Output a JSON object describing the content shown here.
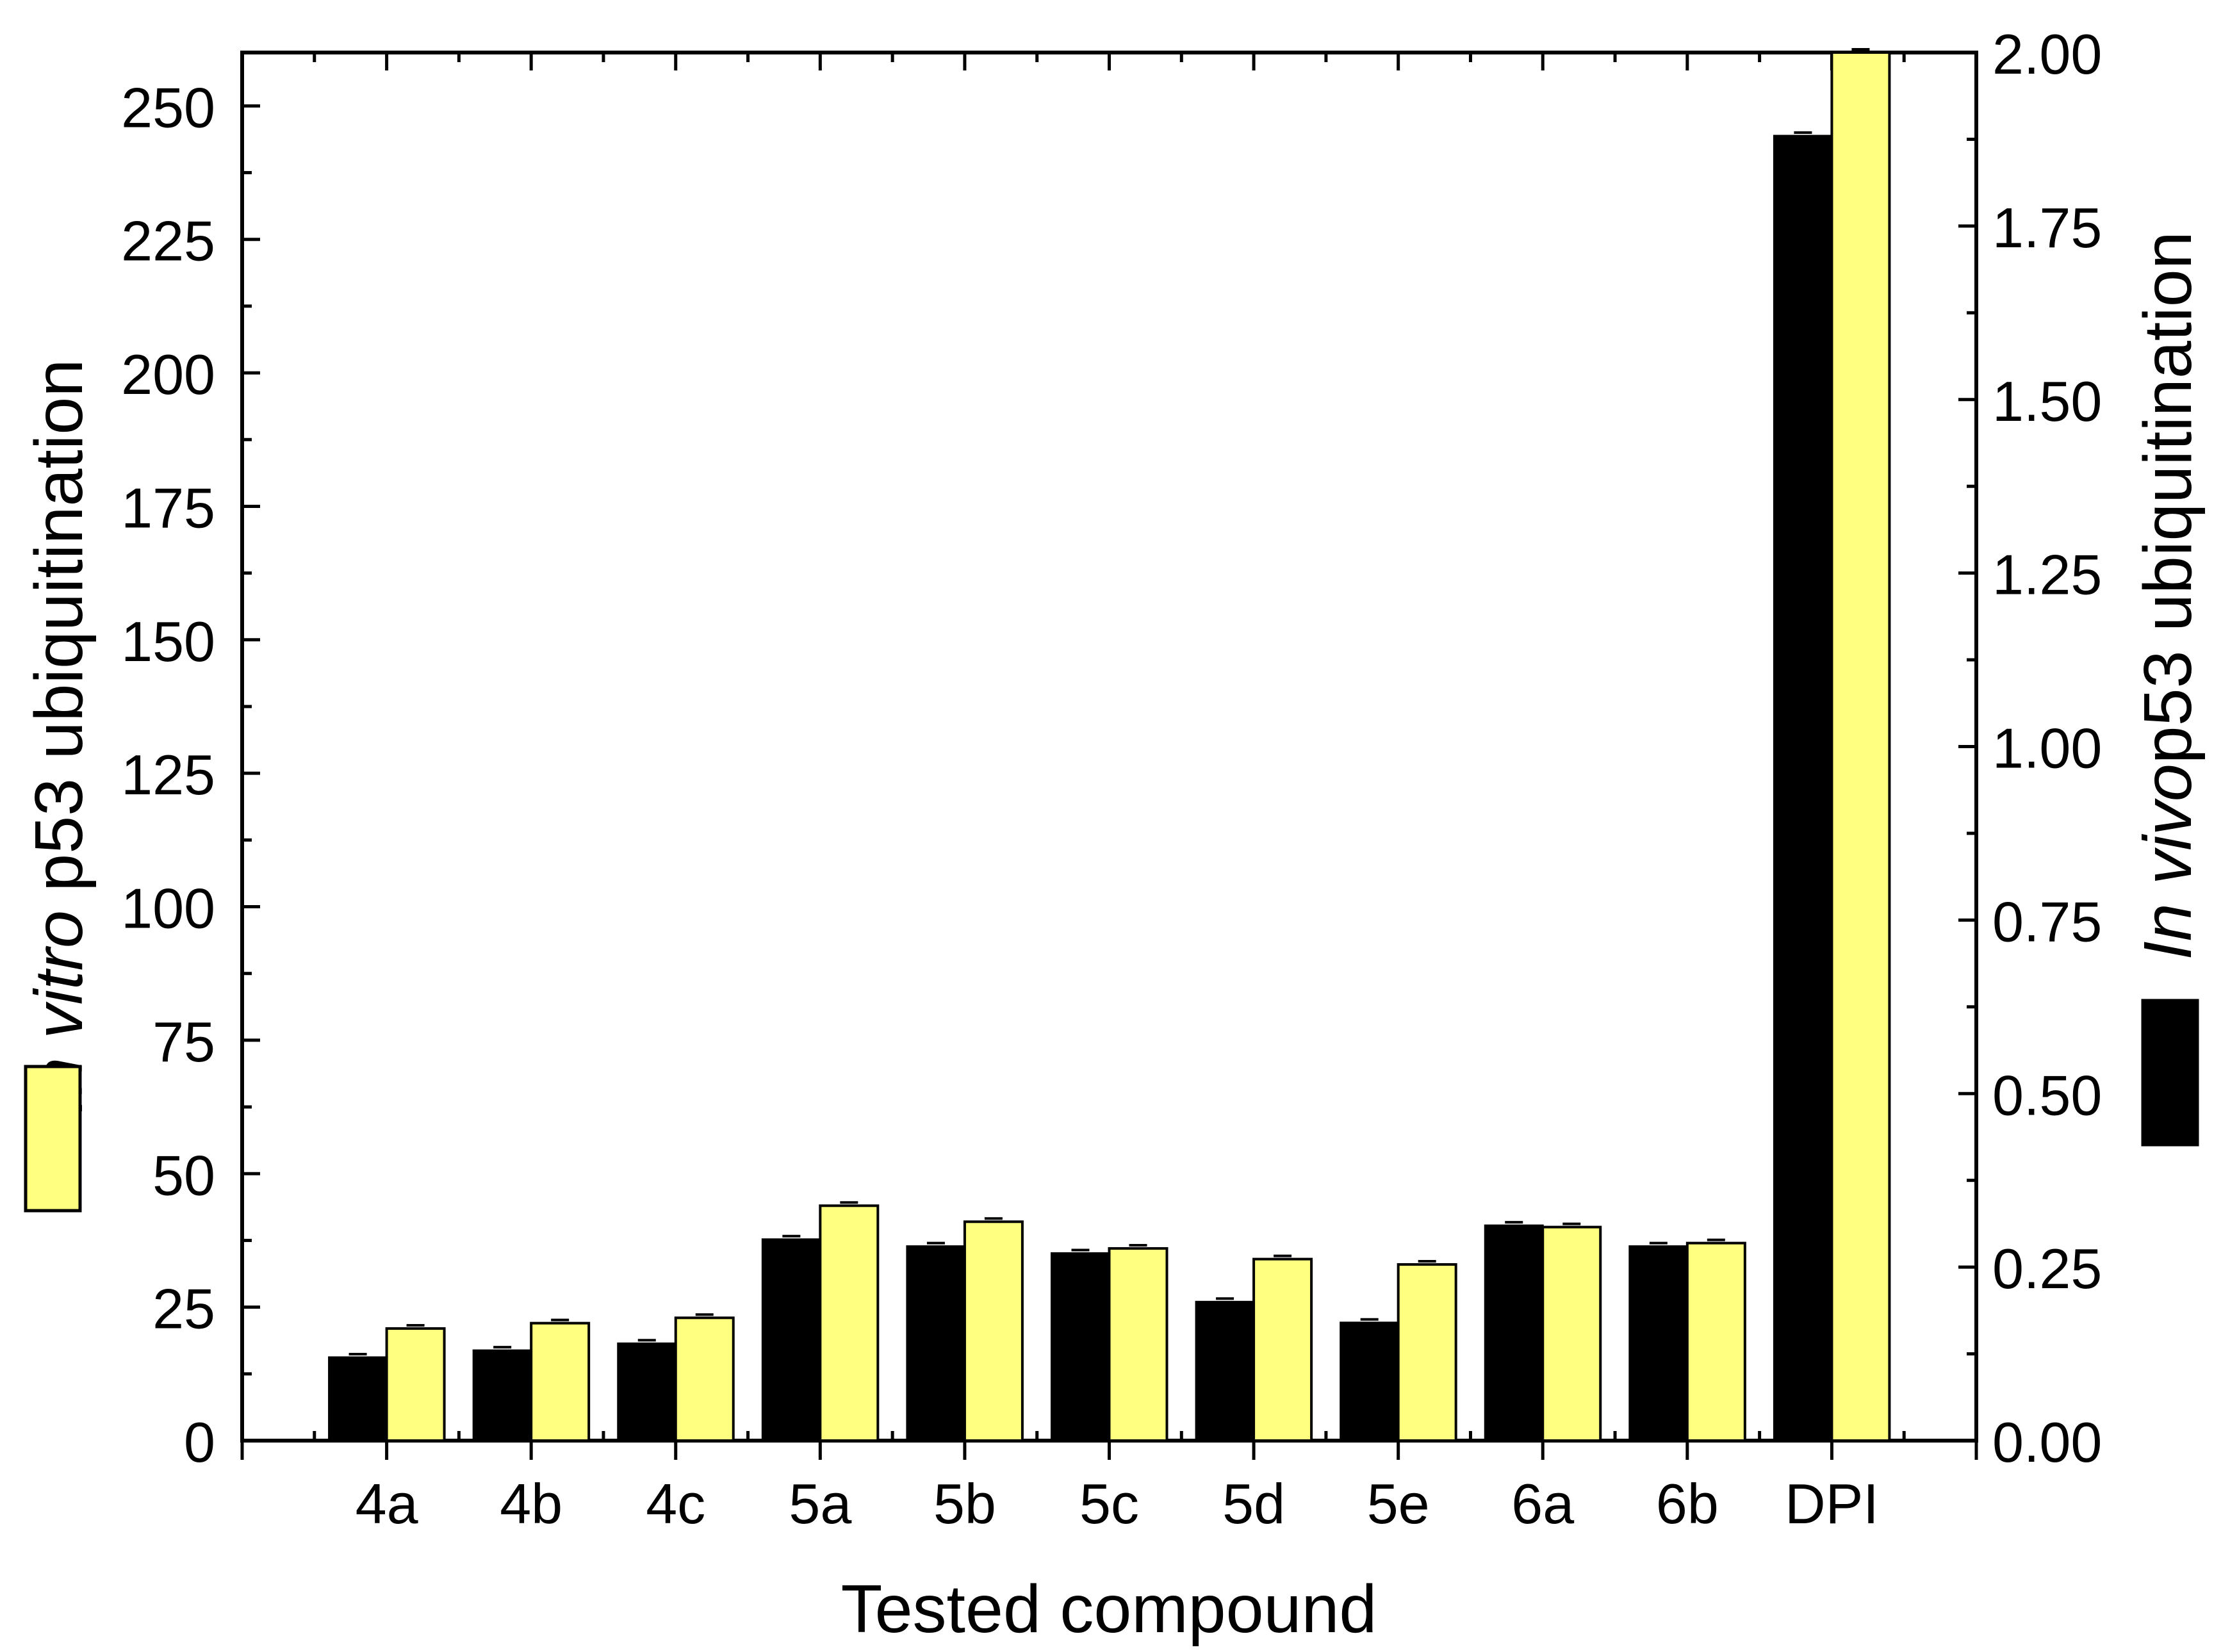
{
  "chart_data": {
    "type": "bar",
    "xlabel": "Tested compound",
    "ylabel_left": {
      "italic": "In vitro",
      "rest": " p53 ubiquitination"
    },
    "ylabel_right": {
      "italic": "In vivo",
      "rest": "p53 ubiquitination"
    },
    "categories": [
      "4a",
      "4b",
      "4c",
      "5a",
      "5b",
      "5c",
      "5d",
      "5e",
      "6a",
      "6b",
      "DPI"
    ],
    "series": [
      {
        "key": "in_vivo",
        "axis": "right",
        "color": "#000000",
        "values": [
          0.12,
          0.13,
          0.14,
          0.29,
          0.28,
          0.27,
          0.2,
          0.17,
          0.31,
          0.28,
          1.88
        ]
      },
      {
        "key": "in_vitro",
        "axis": "left",
        "color": "#ffff80",
        "values": [
          21,
          22,
          23,
          44,
          41,
          36,
          34,
          33,
          40,
          37,
          260
        ]
      }
    ],
    "left_axis": {
      "ylim": [
        0,
        260
      ],
      "ticks": [
        0,
        25,
        50,
        75,
        100,
        125,
        150,
        175,
        200,
        225,
        250
      ],
      "tick_labels": [
        "0",
        "25",
        "50",
        "75",
        "100",
        "125",
        "150",
        "175",
        "200",
        "225",
        "250"
      ]
    },
    "right_axis": {
      "ylim": [
        0,
        2.0
      ],
      "ticks": [
        0,
        0.25,
        0.5,
        0.75,
        1.0,
        1.25,
        1.5,
        1.75,
        2.0
      ],
      "tick_labels": [
        "0.00",
        "0.25",
        "0.50",
        "0.75",
        "1.00",
        "1.25",
        "1.50",
        "1.75",
        "2.00"
      ]
    },
    "legend_left": {
      "color": "#ffff80",
      "placement": "left-of-left-axis-label"
    },
    "legend_right": {
      "color": "#000000",
      "placement": "below-right-axis-label"
    },
    "grid": false
  }
}
